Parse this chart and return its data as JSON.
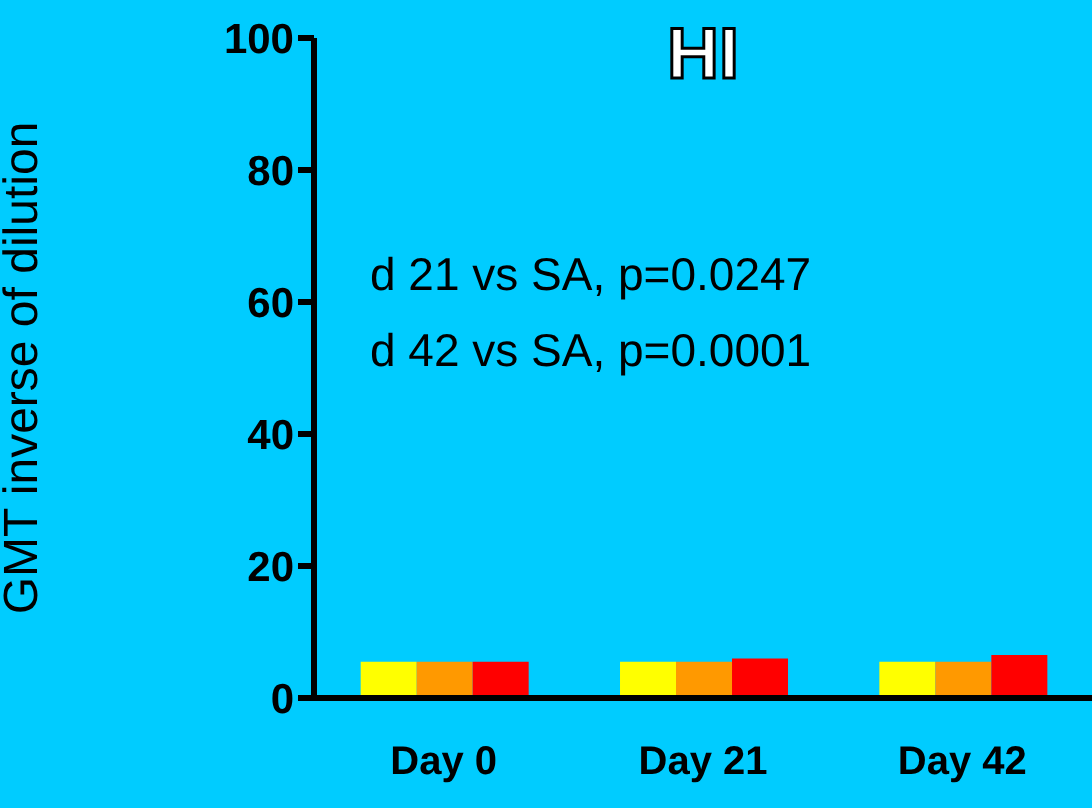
{
  "chart_data": {
    "type": "bar",
    "title": "HI",
    "ylabel": "GMT inverse of dilution",
    "categories": [
      "Day 0",
      "Day 21",
      "Day 42"
    ],
    "series": [
      {
        "color": "#ffff00",
        "values": [
          5.5,
          5.5,
          5.5
        ]
      },
      {
        "color": "#ff9900",
        "values": [
          5.5,
          5.5,
          5.5
        ]
      },
      {
        "color": "#ff0000",
        "values": [
          5.5,
          6,
          6.5
        ]
      }
    ],
    "ylim": [
      0,
      100
    ],
    "yticks": [
      0,
      20,
      40,
      60,
      80,
      100
    ],
    "grid": false,
    "legend": false,
    "annotations": [
      "d 21 vs SA, p=0.0247",
      "d 42 vs SA, p=0.0001"
    ]
  }
}
